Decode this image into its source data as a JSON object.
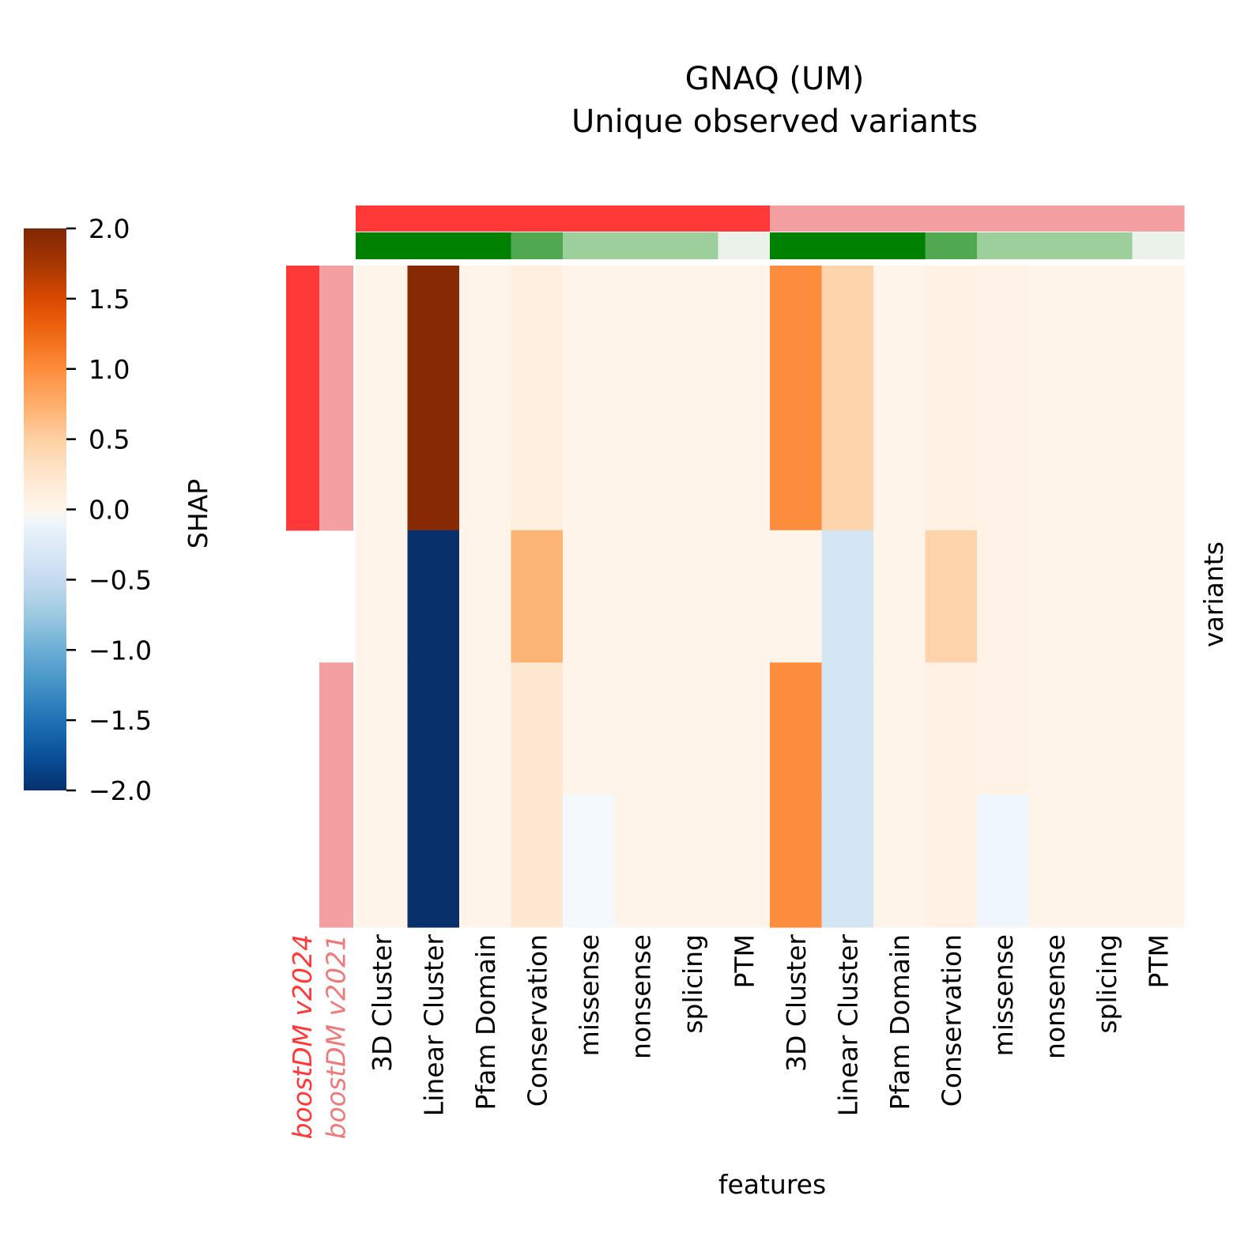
{
  "chart_data": {
    "type": "heatmap",
    "title": "GNAQ (UM)",
    "subtitle": "Unique observed variants",
    "xlabel": "features",
    "ylabel": "variants",
    "colorbar": {
      "label": "SHAP",
      "range": [
        -2.0,
        2.0
      ],
      "ticks": [
        "2.0",
        "1.5",
        "1.0",
        "0.5",
        "0.0",
        "−0.5",
        "−1.0",
        "−1.5",
        "−2.0"
      ],
      "tick_values": [
        2.0,
        1.5,
        1.0,
        0.5,
        0.0,
        -0.5,
        -1.0,
        -1.5,
        -2.0
      ],
      "colormap_positive": "Oranges",
      "colormap_negative": "Blues"
    },
    "row_annotation_columns": [
      {
        "label": "boostDM v2024",
        "color": "#ff3838",
        "label_color": "#ff3838"
      },
      {
        "label": "boostDM v2021",
        "color": "#f5a0a0",
        "label_color": "#f07a7a"
      }
    ],
    "row_annotations": [
      {
        "boostDM v2024": true,
        "boostDM v2021": true
      },
      {
        "boostDM v2024": true,
        "boostDM v2021": true
      },
      {
        "boostDM v2024": false,
        "boostDM v2021": false
      },
      {
        "boostDM v2024": false,
        "boostDM v2021": true
      },
      {
        "boostDM v2024": false,
        "boostDM v2021": true
      }
    ],
    "column_groups": [
      {
        "model": "boostDM v2024",
        "color": "#ff3838"
      },
      {
        "model": "boostDM v2021",
        "color": "#f5a0a0"
      }
    ],
    "feature_category_colors": [
      "#008000",
      "#008000",
      "#008000",
      "#50a850",
      "#9ccf9c",
      "#9ccf9c",
      "#9ccf9c",
      "#eaf2ea",
      "#008000",
      "#008000",
      "#008000",
      "#50a850",
      "#9ccf9c",
      "#9ccf9c",
      "#9ccf9c",
      "#eaf2ea"
    ],
    "columns": [
      "3D Cluster",
      "Linear Cluster",
      "Pfam Domain",
      "Conservation",
      "missense",
      "nonsense",
      "splicing",
      "PTM",
      "3D Cluster",
      "Linear Cluster",
      "Pfam Domain",
      "Conservation",
      "missense",
      "nonsense",
      "splicing",
      "PTM"
    ],
    "column_group_index": [
      0,
      0,
      0,
      0,
      0,
      0,
      0,
      0,
      1,
      1,
      1,
      1,
      1,
      1,
      1,
      1
    ],
    "values": [
      [
        0.02,
        1.95,
        0.02,
        0.1,
        0.02,
        0.02,
        0.02,
        0.02,
        1.0,
        0.45,
        0.02,
        0.06,
        0.03,
        0.02,
        0.02,
        0.02
      ],
      [
        0.02,
        1.95,
        0.02,
        0.1,
        0.02,
        0.02,
        0.02,
        0.02,
        1.0,
        0.45,
        0.02,
        0.06,
        0.03,
        0.02,
        0.02,
        0.02
      ],
      [
        0.02,
        -2.0,
        0.02,
        0.7,
        0.02,
        0.02,
        0.02,
        0.02,
        0.02,
        -0.35,
        0.02,
        0.45,
        0.03,
        0.02,
        0.02,
        0.02
      ],
      [
        0.02,
        -2.0,
        0.02,
        0.22,
        0.02,
        0.02,
        0.02,
        0.02,
        1.0,
        -0.35,
        0.02,
        0.06,
        0.03,
        0.02,
        0.02,
        0.02
      ],
      [
        0.02,
        -2.0,
        0.02,
        0.22,
        -0.03,
        0.02,
        0.02,
        0.02,
        1.0,
        -0.35,
        0.02,
        0.06,
        -0.08,
        0.02,
        0.02,
        0.02
      ]
    ]
  }
}
